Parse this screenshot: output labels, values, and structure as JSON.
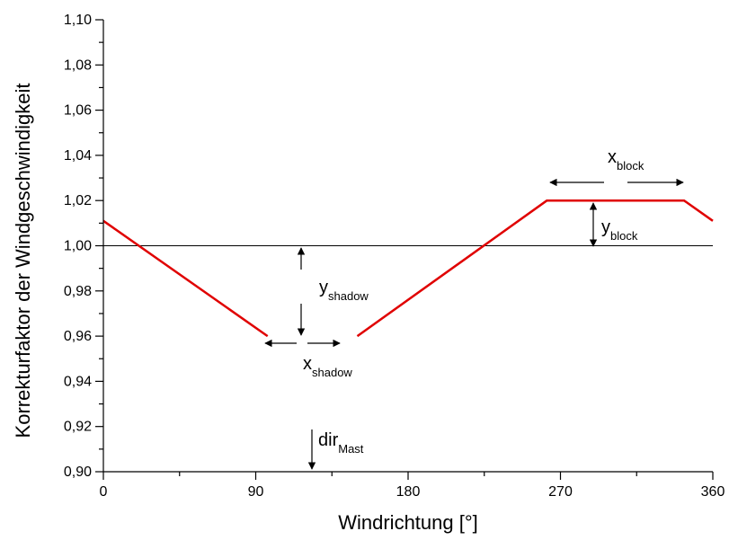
{
  "chart_data": {
    "type": "line",
    "xlabel": "Windrichtung [°]",
    "ylabel": "Korrekturfaktor der Windgeschwindigkeit",
    "xlim": [
      0,
      360
    ],
    "ylim": [
      0.9,
      1.1
    ],
    "xticks": [
      0,
      90,
      180,
      270,
      360
    ],
    "yticks": [
      0.9,
      0.92,
      0.94,
      0.96,
      0.98,
      1.0,
      1.02,
      1.04,
      1.06,
      1.08,
      1.1
    ],
    "xtick_labels": [
      "0",
      "90",
      "180",
      "270",
      "360"
    ],
    "ytick_labels": [
      "0,90",
      "0,92",
      "0,94",
      "0,96",
      "0,98",
      "1,00",
      "1,02",
      "1,04",
      "1,06",
      "1,08",
      "1,10"
    ],
    "reference_line": {
      "y": 1.0,
      "color": "#000000"
    },
    "series": [
      {
        "color": "#e00000",
        "segments": [
          {
            "x": [
              0,
              97
            ],
            "y": [
              1.011,
              0.96
            ]
          },
          {
            "x": [
              150,
              262,
              343,
              360
            ],
            "y": [
              0.96,
              1.02,
              1.02,
              1.011
            ]
          }
        ]
      }
    ],
    "annotations": {
      "x_block": {
        "main": "x",
        "sub": "block"
      },
      "y_block": {
        "main": "y",
        "sub": "block"
      },
      "y_shadow": {
        "main": "y",
        "sub": "shadow"
      },
      "x_shadow": {
        "main": "x",
        "sub": "shadow"
      },
      "dir_mast": {
        "main": "dir",
        "sub": "Mast"
      }
    }
  }
}
